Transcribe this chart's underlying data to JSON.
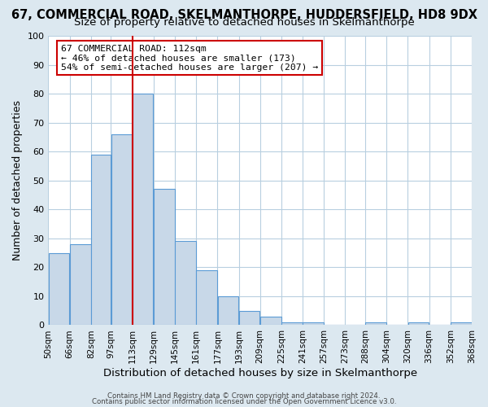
{
  "title1": "67, COMMERCIAL ROAD, SKELMANTHORPE, HUDDERSFIELD, HD8 9DX",
  "title2": "Size of property relative to detached houses in Skelmanthorpe",
  "xlabel": "Distribution of detached houses by size in Skelmanthorpe",
  "ylabel": "Number of detached properties",
  "footer1": "Contains HM Land Registry data © Crown copyright and database right 2024.",
  "footer2": "Contains public sector information licensed under the Open Government Licence v3.0.",
  "bin_labels": [
    "50sqm",
    "66sqm",
    "82sqm",
    "97sqm",
    "113sqm",
    "129sqm",
    "145sqm",
    "161sqm",
    "177sqm",
    "193sqm",
    "209sqm",
    "225sqm",
    "241sqm",
    "257sqm",
    "273sqm",
    "288sqm",
    "304sqm",
    "320sqm",
    "336sqm",
    "352sqm",
    "368sqm"
  ],
  "bar_values": [
    25,
    28,
    59,
    66,
    80,
    47,
    29,
    19,
    10,
    5,
    3,
    1,
    1,
    0,
    0,
    1,
    0,
    1,
    0,
    1
  ],
  "bar_left_edges": [
    50,
    66,
    82,
    97,
    113,
    129,
    145,
    161,
    177,
    193,
    209,
    225,
    241,
    257,
    273,
    288,
    304,
    320,
    336,
    352
  ],
  "bar_widths": [
    16,
    16,
    15,
    16,
    16,
    16,
    16,
    16,
    16,
    16,
    16,
    16,
    16,
    16,
    15,
    16,
    16,
    16,
    16,
    16
  ],
  "bar_color": "#c8d8e8",
  "bar_edge_color": "#5b9bd5",
  "vline_x": 113,
  "vline_color": "#cc0000",
  "annotation_title": "67 COMMERCIAL ROAD: 112sqm",
  "annotation_line1": "← 46% of detached houses are smaller (173)",
  "annotation_line2": "54% of semi-detached houses are larger (207) →",
  "annotation_box_color": "#ffffff",
  "annotation_box_edge": "#cc0000",
  "ylim": [
    0,
    100
  ],
  "yticks": [
    0,
    10,
    20,
    30,
    40,
    50,
    60,
    70,
    80,
    90,
    100
  ],
  "bg_color": "#dce8f0",
  "plot_bg_color": "#ffffff",
  "grid_color": "#b8cfe0",
  "title1_fontsize": 10.5,
  "title2_fontsize": 9.5,
  "xlabel_fontsize": 9.5,
  "ylabel_fontsize": 9
}
